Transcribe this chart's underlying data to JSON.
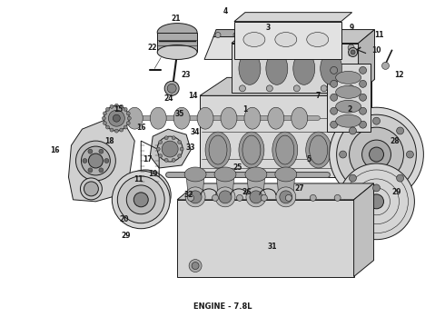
{
  "title": "ENGINE - 7.8L",
  "title_fontsize": 6,
  "title_fontweight": "bold",
  "bg_color": "#ffffff",
  "fig_width": 4.9,
  "fig_height": 3.6,
  "dpi": 100,
  "diagram_color": "#1a1a1a",
  "gray1": "#cccccc",
  "gray2": "#aaaaaa",
  "gray3": "#888888",
  "gray4": "#666666",
  "gray5": "#e0e0e0",
  "lw_main": 0.7,
  "lw_thin": 0.4,
  "lw_thick": 1.2
}
